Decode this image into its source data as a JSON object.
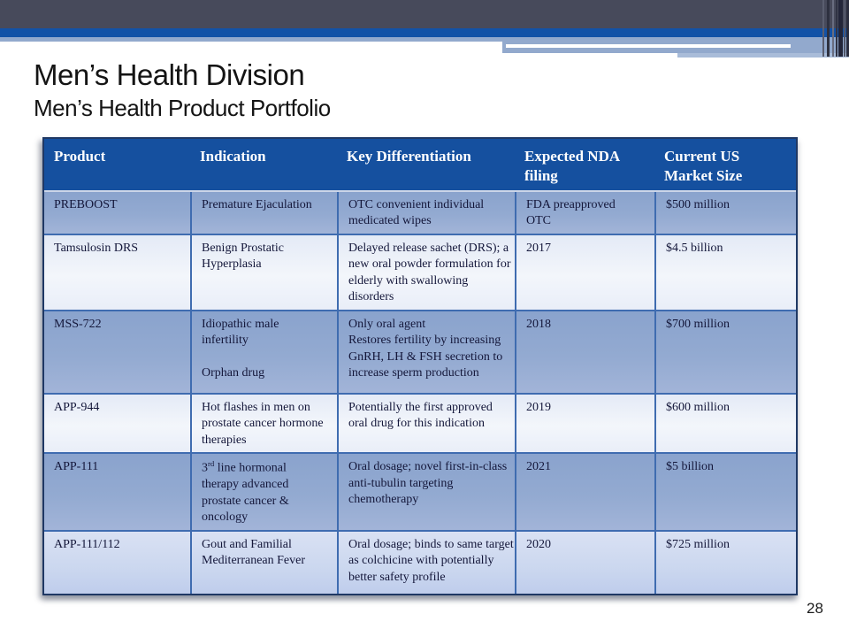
{
  "slide": {
    "title": "Men’s Health Division",
    "subtitle": "Men’s Health Product Portfolio",
    "page_number": "28"
  },
  "colors": {
    "banner_slate": "#474a5b",
    "banner_blue": "#1252a7",
    "banner_light": "#92a9cd",
    "header_bg": "#15509f",
    "grid_line": "#3f6cb0",
    "border_dark": "#1f3864",
    "cell_text": "#14173a",
    "row_steel": "#8fa8d0",
    "row_light": "#ecf0f9",
    "row_bottom": "#c9d6ee"
  },
  "table": {
    "columns": [
      "Product",
      "Indication",
      "Key Differentiation",
      "Expected NDA filing",
      "Current US Market Size"
    ],
    "rows": [
      {
        "product": "PREBOOST",
        "indication": "Premature Ejaculation",
        "differentiation": "OTC convenient individual medicated wipes",
        "nda_filing": "FDA preapproved OTC",
        "market_size": "$500 million"
      },
      {
        "product": "Tamsulosin DRS",
        "indication": "Benign Prostatic Hyperplasia",
        "differentiation": "Delayed release sachet (DRS); a new oral powder formulation for elderly with swallowing disorders",
        "nda_filing": "2017",
        "market_size": "$4.5 billion"
      },
      {
        "product": "MSS-722",
        "indication": "Idiopathic male infertility",
        "indication2": "Orphan drug",
        "differentiation": "Only oral agent",
        "differentiation2": "Restores fertility by increasing GnRH, LH & FSH secretion to increase sperm production",
        "nda_filing": "2018",
        "market_size": "$700 million"
      },
      {
        "product": "APP-944",
        "indication": "Hot flashes in men on prostate cancer hormone therapies",
        "differentiation": "Potentially the first approved oral drug for this indication",
        "nda_filing": "2019",
        "market_size": "$600 million"
      },
      {
        "product": "APP-111",
        "indication_num": "3",
        "indication_sup": "rd",
        "indication_rest": " line hormonal therapy advanced prostate cancer & oncology",
        "differentiation": "Oral dosage; novel first-in-class anti-tubulin targeting chemotherapy",
        "nda_filing": "2021",
        "market_size": "$5 billion"
      },
      {
        "product": "APP-111/112",
        "indication": "Gout and Familial Mediterranean Fever",
        "differentiation": "Oral dosage; binds to same target as colchicine with potentially better safety profile",
        "nda_filing": "2020",
        "market_size": "$725 million"
      }
    ]
  }
}
